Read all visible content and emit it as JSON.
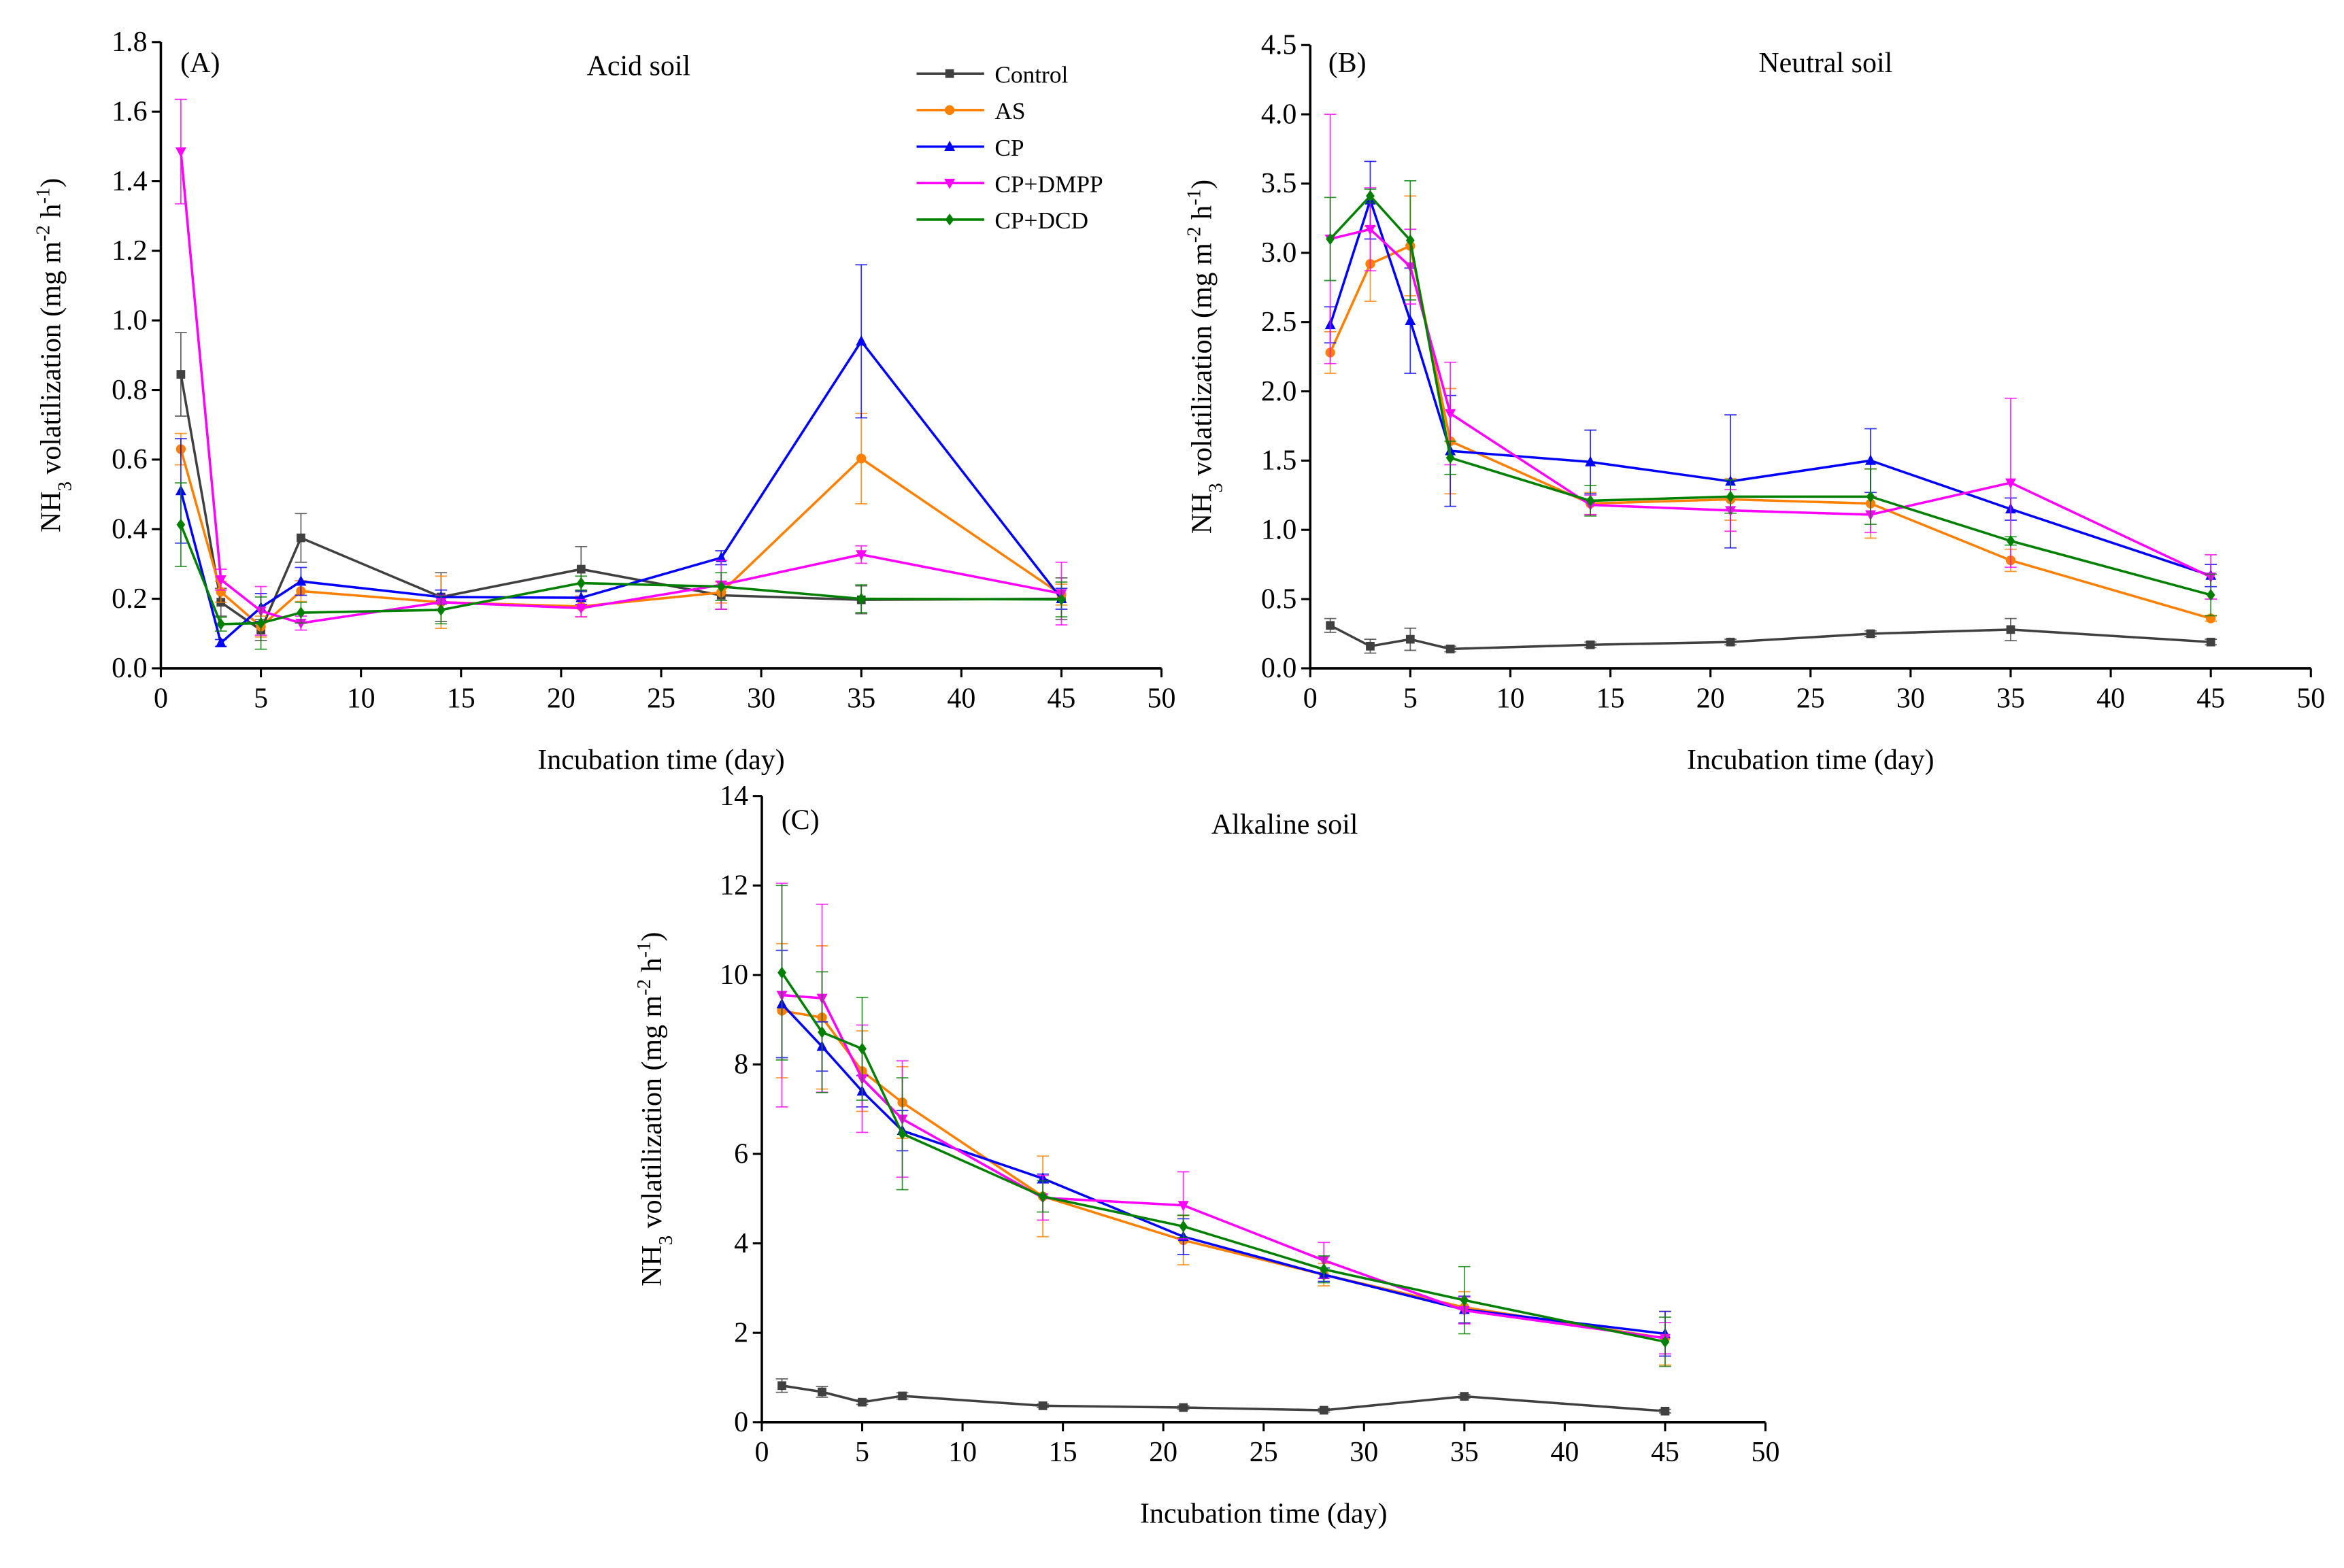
{
  "chart_data": [
    {
      "type": "line",
      "panel_label": "(A)",
      "title": "Acid soil",
      "xlabel": "Incubation time (day)",
      "ylabel_parts": [
        "NH",
        "3",
        " volatilization  (mg m",
        "-2",
        " h",
        "-1",
        ")"
      ],
      "xlim": [
        0,
        50
      ],
      "ylim": [
        0,
        1.8
      ],
      "xticks": [
        "0",
        "5",
        "10",
        "15",
        "20",
        "25",
        "30",
        "35",
        "40",
        "45",
        "50"
      ],
      "yticks": [
        "0.0",
        "0.2",
        "0.4",
        "0.6",
        "0.8",
        "1.0",
        "1.2",
        "1.4",
        "1.6",
        "1.8"
      ],
      "x": [
        1,
        3,
        5,
        7,
        14,
        21,
        28,
        35,
        45
      ],
      "legend_position": "top-right",
      "series": [
        {
          "name": "Control",
          "color": "#404040",
          "marker": "square",
          "values": [
            0.845,
            0.19,
            0.11,
            0.375,
            0.205,
            0.285,
            0.21,
            0.197,
            0.2
          ],
          "err": [
            0.12,
            0.04,
            0.03,
            0.07,
            0.07,
            0.065,
            0.04,
            0.04,
            0.06
          ]
        },
        {
          "name": "AS",
          "color": "#ff8000",
          "marker": "circle",
          "values": [
            0.63,
            0.22,
            0.12,
            0.222,
            0.19,
            0.178,
            0.218,
            0.603,
            0.212
          ],
          "err": [
            0.045,
            0.03,
            0.03,
            0.03,
            0.075,
            0.03,
            0.03,
            0.13,
            0.03
          ]
        },
        {
          "name": "CP",
          "color": "#0000ff",
          "marker": "triangle-up",
          "values": [
            0.51,
            0.073,
            0.175,
            0.25,
            0.205,
            0.203,
            0.318,
            0.94,
            0.2
          ],
          "err": [
            0.15,
            0.01,
            0.04,
            0.04,
            0.02,
            0.02,
            0.02,
            0.22,
            0.03
          ]
        },
        {
          "name": "CP+DMPP",
          "color": "#ff00ff",
          "marker": "triangle-down",
          "values": [
            1.485,
            0.255,
            0.165,
            0.13,
            0.19,
            0.173,
            0.24,
            0.327,
            0.215
          ],
          "err": [
            0.15,
            0.03,
            0.07,
            0.02,
            0.02,
            0.025,
            0.07,
            0.025,
            0.09
          ]
        },
        {
          "name": "CP+DCD",
          "color": "#008000",
          "marker": "diamond",
          "values": [
            0.413,
            0.127,
            0.13,
            0.16,
            0.168,
            0.245,
            0.235,
            0.2,
            0.198
          ],
          "err": [
            0.12,
            0.02,
            0.075,
            0.03,
            0.04,
            0.02,
            0.04,
            0.04,
            0.05
          ]
        }
      ]
    },
    {
      "type": "line",
      "panel_label": "(B)",
      "title": "Neutral soil",
      "xlabel": "Incubation time (day)",
      "ylabel_parts": [
        "NH",
        "3",
        " volatilization  (mg m",
        "-2",
        " h",
        "-1",
        ")"
      ],
      "xlim": [
        0,
        50
      ],
      "ylim": [
        0,
        4.5
      ],
      "xticks": [
        "0",
        "5",
        "10",
        "15",
        "20",
        "25",
        "30",
        "35",
        "40",
        "45",
        "50"
      ],
      "yticks": [
        "0.0",
        "0.5",
        "1.0",
        "1.5",
        "2.0",
        "2.5",
        "3.0",
        "3.5",
        "4.0",
        "4.5"
      ],
      "x": [
        1,
        3,
        5,
        7,
        14,
        21,
        28,
        35,
        45
      ],
      "series": [
        {
          "name": "Control",
          "color": "#404040",
          "marker": "square",
          "values": [
            0.31,
            0.16,
            0.21,
            0.14,
            0.17,
            0.19,
            0.25,
            0.28,
            0.19
          ],
          "err": [
            0.05,
            0.05,
            0.08,
            0.02,
            0.02,
            0.02,
            0.02,
            0.08,
            0.02
          ]
        },
        {
          "name": "AS",
          "color": "#ff8000",
          "marker": "circle",
          "values": [
            2.28,
            2.92,
            3.05,
            1.64,
            1.19,
            1.22,
            1.19,
            0.78,
            0.36
          ],
          "err": [
            0.15,
            0.27,
            0.36,
            0.38,
            0.08,
            0.15,
            0.25,
            0.08,
            0.02
          ]
        },
        {
          "name": "CP",
          "color": "#0000ff",
          "marker": "triangle-up",
          "values": [
            2.48,
            3.38,
            2.51,
            1.57,
            1.49,
            1.35,
            1.5,
            1.15,
            0.67
          ],
          "err": [
            0.13,
            0.28,
            0.38,
            0.4,
            0.23,
            0.48,
            0.23,
            0.08,
            0.08
          ]
        },
        {
          "name": "CP+DMPP",
          "color": "#ff00ff",
          "marker": "triangle-down",
          "values": [
            3.1,
            3.17,
            2.9,
            1.84,
            1.18,
            1.14,
            1.11,
            1.34,
            0.66
          ],
          "err": [
            0.9,
            0.3,
            0.27,
            0.37,
            0.07,
            0.15,
            0.13,
            0.61,
            0.16
          ]
        },
        {
          "name": "CP+DCD",
          "color": "#008000",
          "marker": "diamond",
          "values": [
            3.1,
            3.41,
            3.09,
            1.52,
            1.21,
            1.24,
            1.24,
            0.92,
            0.53
          ],
          "err": [
            0.3,
            0.05,
            0.43,
            0.12,
            0.11,
            0.12,
            0.2,
            0.03,
            0.15
          ]
        }
      ]
    },
    {
      "type": "line",
      "panel_label": "(C)",
      "title": "Alkaline soil",
      "xlabel": "Incubation time (day)",
      "ylabel_parts": [
        "NH",
        "3",
        " volatilization  (mg m",
        "-2",
        " h",
        "-1",
        ")"
      ],
      "xlim": [
        0,
        50
      ],
      "ylim": [
        0,
        14
      ],
      "xticks": [
        "0",
        "5",
        "10",
        "15",
        "20",
        "25",
        "30",
        "35",
        "40",
        "45",
        "50"
      ],
      "yticks": [
        "0",
        "2",
        "4",
        "6",
        "8",
        "10",
        "12",
        "14"
      ],
      "x": [
        1,
        3,
        5,
        7,
        14,
        21,
        28,
        35,
        45
      ],
      "series": [
        {
          "name": "Control",
          "color": "#404040",
          "marker": "square",
          "values": [
            0.82,
            0.68,
            0.45,
            0.59,
            0.37,
            0.33,
            0.27,
            0.58,
            0.25
          ],
          "err": [
            0.15,
            0.12,
            0.05,
            0.07,
            0.04,
            0.04,
            0.04,
            0.04,
            0.04
          ]
        },
        {
          "name": "AS",
          "color": "#ff8000",
          "marker": "circle",
          "values": [
            9.2,
            9.05,
            7.85,
            7.15,
            5.05,
            4.07,
            3.3,
            2.57,
            1.88
          ],
          "err": [
            1.5,
            1.6,
            0.9,
            0.8,
            0.9,
            0.55,
            0.25,
            0.35,
            0.6
          ]
        },
        {
          "name": "CP",
          "color": "#0000ff",
          "marker": "triangle-up",
          "values": [
            9.35,
            8.4,
            7.4,
            6.52,
            5.45,
            4.15,
            3.3,
            2.52,
            1.98
          ],
          "err": [
            1.2,
            0.55,
            0.35,
            0.45,
            0.1,
            0.4,
            0.15,
            0.3,
            0.5
          ]
        },
        {
          "name": "CP+DMPP",
          "color": "#ff00ff",
          "marker": "triangle-down",
          "values": [
            9.55,
            9.48,
            7.68,
            6.78,
            5.02,
            4.85,
            3.62,
            2.5,
            1.88
          ],
          "err": [
            2.5,
            2.1,
            1.2,
            1.3,
            0.5,
            0.75,
            0.4,
            0.3,
            0.35
          ]
        },
        {
          "name": "CP+DCD",
          "color": "#008000",
          "marker": "diamond",
          "values": [
            10.05,
            8.72,
            8.35,
            6.45,
            5.05,
            4.38,
            3.42,
            2.73,
            1.8
          ],
          "err": [
            1.95,
            1.35,
            1.15,
            1.25,
            0.35,
            0.25,
            0.3,
            0.75,
            0.55
          ]
        }
      ]
    }
  ]
}
